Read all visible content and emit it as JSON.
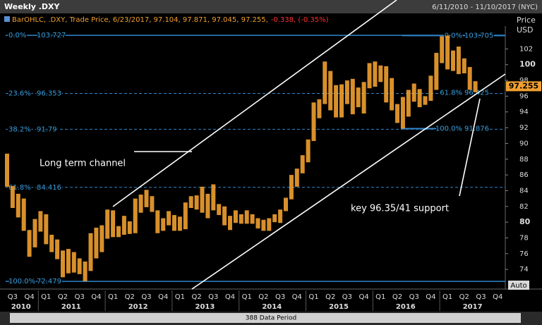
{
  "header": {
    "title": "Weekly .DXY",
    "range": "6/11/2010 - 11/10/2017 (NYC)"
  },
  "info": {
    "label": "BarOHLC, .DXY, Trade Price, 6/23/2017, 97.104, 97.871, 97.045, 97.255,",
    "change": "-0.338, (-0.35%)"
  },
  "chart_data": {
    "type": "ohlc",
    "y_axis_label": "Price",
    "y_axis_unit": "USD",
    "color": "#f0a030",
    "low": [
      84.5,
      81.8,
      80.6,
      78.9,
      75.6,
      76.8,
      78.8,
      77.2,
      76.2,
      75.3,
      73.0,
      73.5,
      73.6,
      73.4,
      72.5,
      73.8,
      75.4,
      76.2,
      77.9,
      78.1,
      78.1,
      78.4,
      78.5,
      78.6,
      81.2,
      81.9,
      81.3,
      78.6,
      78.9,
      79.6,
      78.9,
      78.9,
      79.1,
      81.8,
      81.6,
      81.2,
      80.5,
      81.5,
      80.9,
      79.6,
      79.0,
      79.9,
      79.8,
      79.8,
      79.8,
      79.2,
      78.9,
      78.9,
      80.0,
      79.9,
      81.4,
      82.9,
      84.5,
      86.2,
      87.6,
      90.3,
      93.2,
      95.0,
      94.2,
      93.3,
      93.3,
      95.0,
      93.7,
      94.6,
      93.8,
      97.0,
      97.2,
      97.8,
      95.2,
      94.2,
      92.6,
      91.9,
      93.4,
      95.3,
      94.6,
      94.9,
      95.4,
      96.8,
      100.2,
      99.4,
      99.2,
      98.8,
      98.9,
      96.8,
      96.5
    ],
    "high": [
      88.7,
      84.6,
      83.6,
      83.0,
      79.0,
      80.4,
      81.4,
      81.0,
      78.4,
      77.8,
      76.4,
      76.6,
      76.2,
      75.4,
      75.0,
      78.6,
      79.3,
      79.6,
      81.6,
      81.5,
      79.5,
      80.8,
      80.1,
      83.0,
      83.5,
      84.1,
      83.3,
      81.5,
      80.5,
      81.4,
      80.9,
      80.7,
      82.5,
      83.3,
      83.4,
      84.5,
      83.6,
      84.8,
      82.3,
      82.0,
      80.8,
      81.5,
      81.0,
      81.5,
      81.0,
      80.5,
      80.3,
      80.5,
      81.0,
      81.6,
      83.1,
      86.0,
      86.8,
      88.5,
      90.5,
      95.2,
      95.6,
      100.4,
      99.2,
      97.4,
      97.5,
      98.0,
      98.2,
      97.1,
      97.8,
      100.2,
      100.4,
      99.9,
      99.8,
      98.3,
      95.0,
      95.9,
      96.8,
      97.6,
      96.9,
      96.0,
      98.6,
      101.5,
      103.6,
      103.7,
      101.8,
      102.3,
      100.8,
      99.7,
      97.9
    ],
    "last": 97.255,
    "ylim": [
      72.4,
      104.9
    ],
    "yticks": [
      74,
      76,
      78,
      80,
      82,
      84,
      86,
      88,
      90,
      92,
      94,
      96,
      98,
      100,
      102
    ],
    "quarters": [
      "Q3",
      "Q4",
      "Q1",
      "Q2",
      "Q3",
      "Q4",
      "Q1",
      "Q2",
      "Q3",
      "Q4",
      "Q1",
      "Q2",
      "Q3",
      "Q4",
      "Q1",
      "Q2",
      "Q3",
      "Q4",
      "Q1",
      "Q2",
      "Q3",
      "Q4",
      "Q1",
      "Q2",
      "Q3",
      "Q4",
      "Q1",
      "Q2",
      "Q3",
      "Q4"
    ],
    "years": [
      "2010",
      "2011",
      "2012",
      "2013",
      "2014",
      "2015",
      "2016",
      "2017"
    ],
    "fib_left": [
      {
        "pct": "0.0%",
        "value": 103.727
      },
      {
        "pct": "23.6%",
        "value": 96.353
      },
      {
        "pct": "38.2%",
        "value": 91.79
      },
      {
        "pct": "61.8%",
        "value": 84.416
      },
      {
        "pct": "100.0%",
        "value": 72.479
      }
    ],
    "fib_right": [
      {
        "pct": "0.0%",
        "value": 103.705
      },
      {
        "pct": "61.8%",
        "value": 96.425
      },
      {
        "pct": "100.0%",
        "value": 91.876
      }
    ],
    "annotations": [
      "Long term channel",
      "key 96.35/41 support"
    ],
    "auto": "Auto",
    "periods": "388 Data Period"
  }
}
